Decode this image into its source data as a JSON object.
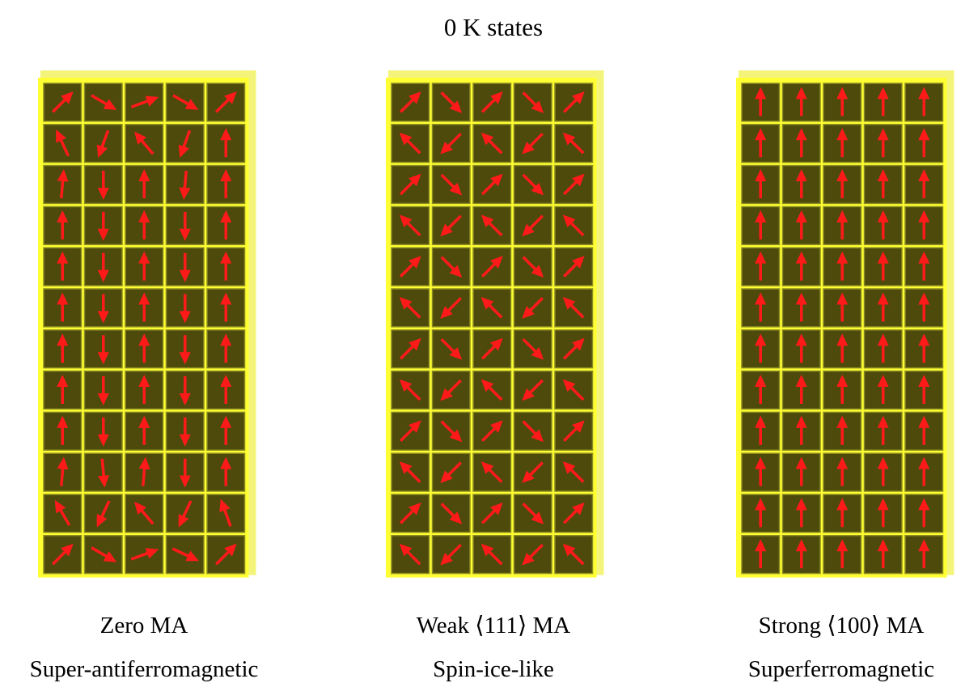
{
  "title": "0 K states",
  "panels": [
    {
      "label": "Zero MA",
      "description": "Super-antiferromagnetic"
    },
    {
      "label": "Weak ⟨111⟩ MA",
      "description": "Spin-ice-like"
    },
    {
      "label": "Strong ⟨100⟩ MA",
      "description": "Superferromagnetic"
    }
  ]
}
